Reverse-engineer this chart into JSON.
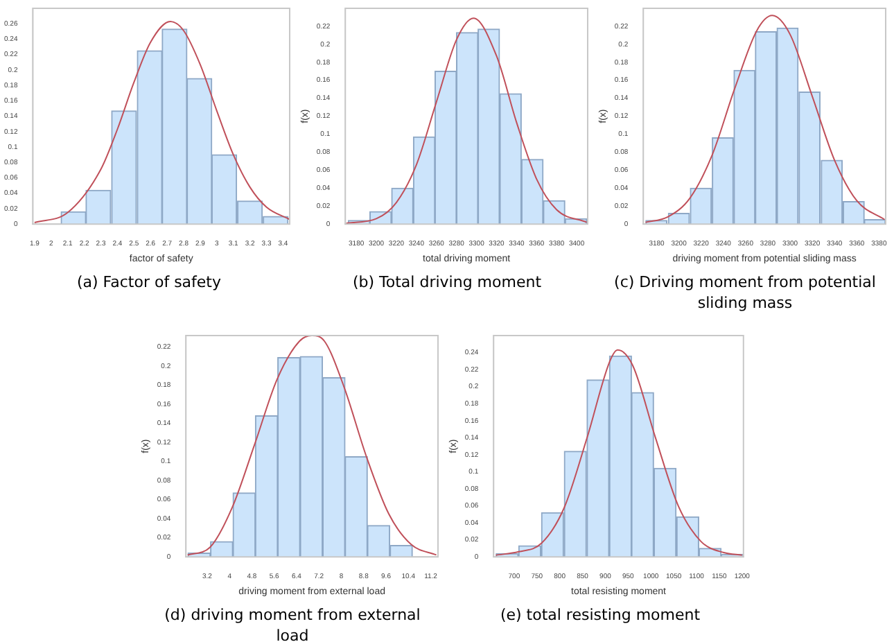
{
  "chart_data": [
    {
      "type": "histogram",
      "title": "(a) Factor of safety",
      "xlabel": "factor of safety",
      "bins": [
        2.06,
        2.21,
        2.36,
        2.52,
        2.67,
        2.82,
        2.97,
        3.12,
        3.28,
        3.43
      ],
      "values": [
        0.016,
        0.044,
        0.147,
        0.225,
        0.253,
        0.189,
        0.09,
        0.03,
        0.01
      ],
      "color": "#cce4fb",
      "series": [
        {
          "type": "line",
          "color": "#c0505a",
          "x": [
            1.9,
            2.1,
            2.3,
            2.4,
            2.5,
            2.6,
            2.72,
            2.8,
            2.9,
            3.0,
            3.1,
            3.2,
            3.3,
            3.44
          ],
          "values": [
            0.002,
            0.015,
            0.071,
            0.123,
            0.184,
            0.236,
            0.263,
            0.251,
            0.207,
            0.147,
            0.09,
            0.048,
            0.022,
            0.006
          ]
        }
      ],
      "xlim": [
        1.89,
        3.44
      ],
      "ylim": [
        0,
        0.28
      ],
      "xticks": [
        1.9,
        2,
        2.1,
        2.2,
        2.3,
        2.4,
        2.5,
        2.6,
        2.7,
        2.8,
        2.9,
        3,
        3.1,
        3.2,
        3.3,
        3.4
      ],
      "yticks": [
        0,
        0.02,
        0.04,
        0.06,
        0.08,
        0.1,
        0.12,
        0.14,
        0.16,
        0.18,
        0.2,
        0.22,
        0.24,
        0.26
      ]
    },
    {
      "type": "histogram",
      "title": "(b) Total driving moment",
      "xlabel": "total driving moment",
      "ylabel": "f(x)",
      "bins": [
        3172,
        3193.5,
        3215,
        3237,
        3258.5,
        3280,
        3301.5,
        3323,
        3345,
        3366.5,
        3388.5,
        3410
      ],
      "values": [
        0.004,
        0.014,
        0.04,
        0.097,
        0.17,
        0.213,
        0.217,
        0.145,
        0.072,
        0.026,
        0.006
      ],
      "color": "#cce4fb",
      "series": [
        {
          "type": "line",
          "color": "#c0505a",
          "x": [
            3170,
            3200,
            3220,
            3240,
            3260,
            3280,
            3297,
            3320,
            3340,
            3360,
            3380,
            3410
          ],
          "values": [
            0.001,
            0.006,
            0.024,
            0.066,
            0.136,
            0.205,
            0.229,
            0.187,
            0.113,
            0.05,
            0.016,
            0.002
          ]
        }
      ],
      "xlim": [
        3169,
        3411
      ],
      "ylim": [
        0,
        0.24
      ],
      "xticks": [
        3180,
        3200,
        3220,
        3240,
        3260,
        3280,
        3300,
        3320,
        3340,
        3360,
        3380,
        3400
      ],
      "yticks": [
        0,
        0.02,
        0.04,
        0.06,
        0.08,
        0.1,
        0.12,
        0.14,
        0.16,
        0.18,
        0.2,
        0.22
      ]
    },
    {
      "type": "histogram",
      "title": "(c) Driving moment from potential sliding mass",
      "xlabel": "driving moment from potential sliding mass",
      "ylabel": "f(x)",
      "bins": [
        3169.5,
        3190,
        3210,
        3229.5,
        3249.5,
        3268.5,
        3288,
        3307.5,
        3327.5,
        3347.5,
        3367,
        3385.5
      ],
      "values": [
        0.004,
        0.012,
        0.04,
        0.096,
        0.171,
        0.214,
        0.218,
        0.147,
        0.071,
        0.025,
        0.005
      ],
      "color": "#cce4fb",
      "series": [
        {
          "type": "line",
          "color": "#c0505a",
          "x": [
            3170,
            3190,
            3210,
            3230,
            3250,
            3270,
            3284,
            3300,
            3320,
            3340,
            3360,
            3385
          ],
          "values": [
            0.002,
            0.008,
            0.029,
            0.077,
            0.15,
            0.215,
            0.232,
            0.211,
            0.142,
            0.071,
            0.026,
            0.005
          ]
        }
      ],
      "xlim": [
        3168,
        3386
      ],
      "ylim": [
        0,
        0.24
      ],
      "xticks": [
        3180,
        3200,
        3220,
        3240,
        3260,
        3280,
        3300,
        3320,
        3340,
        3360,
        3380
      ],
      "yticks": [
        0,
        0.02,
        0.04,
        0.06,
        0.08,
        0.1,
        0.12,
        0.14,
        0.16,
        0.18,
        0.2,
        0.22
      ]
    },
    {
      "type": "histogram",
      "title": "(d) driving moment from external load",
      "xlabel": "driving moment from external load",
      "ylabel": "f(x)",
      "bins": [
        2.51,
        3.32,
        4.12,
        4.93,
        5.72,
        6.53,
        7.33,
        8.14,
        8.93,
        9.74,
        10.55
      ],
      "values": [
        0.004,
        0.016,
        0.067,
        0.148,
        0.209,
        0.21,
        0.188,
        0.105,
        0.033,
        0.012
      ],
      "color": "#cce4fb",
      "series": [
        {
          "type": "line",
          "color": "#c0505a",
          "x": [
            2.5,
            3.3,
            4.1,
            4.9,
            5.7,
            6.5,
            6.95,
            7.4,
            8.1,
            8.9,
            9.7,
            10.5,
            11.4
          ],
          "values": [
            0.002,
            0.01,
            0.052,
            0.118,
            0.186,
            0.226,
            0.232,
            0.226,
            0.178,
            0.105,
            0.045,
            0.013,
            0.002
          ]
        }
      ],
      "xlim": [
        2.44,
        11.46
      ],
      "ylim": [
        0,
        0.232
      ],
      "xticks": [
        3.2,
        4,
        4.8,
        5.6,
        6.4,
        7.2,
        8,
        8.8,
        9.6,
        10.4,
        11.2
      ],
      "yticks": [
        0,
        0.02,
        0.04,
        0.06,
        0.08,
        0.1,
        0.12,
        0.14,
        0.16,
        0.18,
        0.2,
        0.22
      ]
    },
    {
      "type": "histogram",
      "title": "(e) total resisting moment",
      "xlabel": "total resisting moment",
      "ylabel": "f(x)",
      "bins": [
        660,
        709.5,
        759,
        809.5,
        859,
        909,
        957.5,
        1006,
        1056,
        1105.5,
        1154,
        1203
      ],
      "values": [
        0.004,
        0.013,
        0.052,
        0.124,
        0.208,
        0.236,
        0.193,
        0.104,
        0.047,
        0.01,
        0.003
      ],
      "color": "#cce4fb",
      "series": [
        {
          "type": "line",
          "color": "#c0505a",
          "x": [
            660,
            710,
            760,
            810,
            860,
            910,
            927,
            960,
            1010,
            1060,
            1110,
            1160,
            1200
          ],
          "values": [
            0.002,
            0.006,
            0.016,
            0.058,
            0.14,
            0.23,
            0.243,
            0.225,
            0.14,
            0.06,
            0.018,
            0.005,
            0.002
          ]
        }
      ],
      "xlim": [
        655,
        1203
      ],
      "ylim": [
        0,
        0.26
      ],
      "xticks": [
        700,
        750,
        800,
        850,
        900,
        950,
        1000,
        1050,
        1100,
        1150,
        1200
      ],
      "yticks": [
        0,
        0.02,
        0.04,
        0.06,
        0.08,
        0.1,
        0.12,
        0.14,
        0.16,
        0.18,
        0.2,
        0.22,
        0.24
      ]
    }
  ]
}
